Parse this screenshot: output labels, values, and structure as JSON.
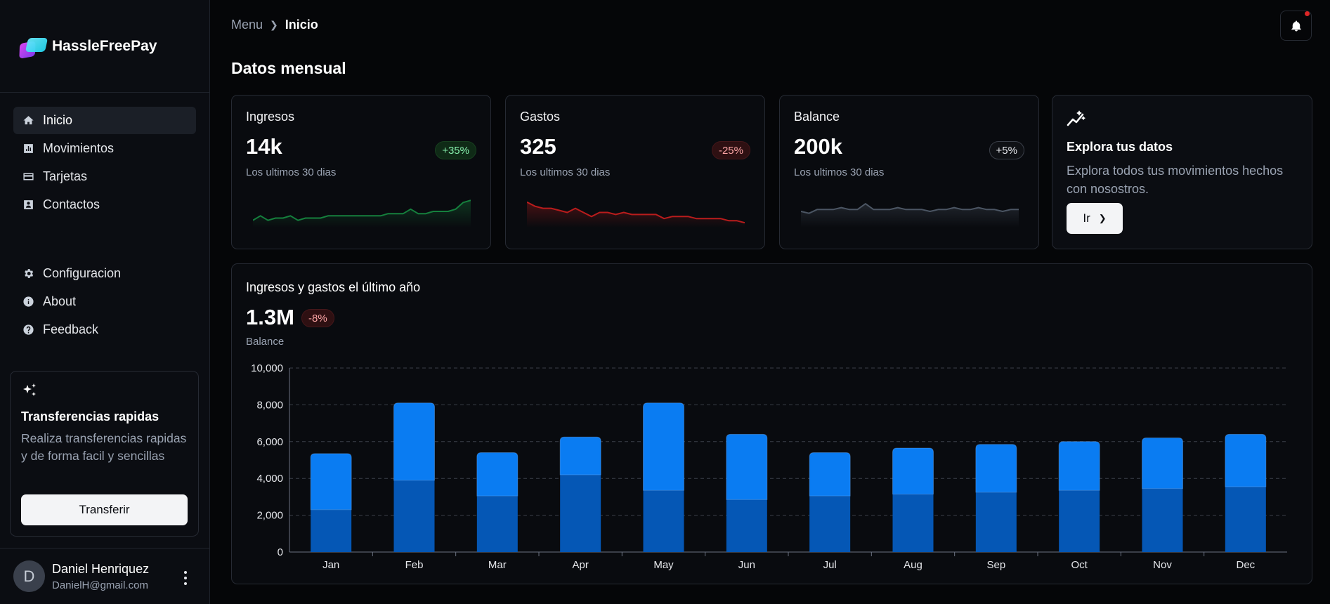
{
  "brand": {
    "name": "HassleFreePay"
  },
  "nav": {
    "main": [
      {
        "label": "Inicio",
        "icon": "home-icon",
        "active": true
      },
      {
        "label": "Movimientos",
        "icon": "bar-chart-icon"
      },
      {
        "label": "Tarjetas",
        "icon": "credit-card-icon"
      },
      {
        "label": "Contactos",
        "icon": "contact-card-icon"
      }
    ],
    "secondary": [
      {
        "label": "Configuracion",
        "icon": "gear-icon"
      },
      {
        "label": "About",
        "icon": "info-icon"
      },
      {
        "label": "Feedback",
        "icon": "help-icon"
      }
    ]
  },
  "quick_transfer": {
    "title": "Transferencias rapidas",
    "description": "Realiza transferencias rapidas y de forma facil y sencillas",
    "button": "Transferir"
  },
  "user": {
    "initial": "D",
    "name": "Daniel Henriquez",
    "email": "DanielH@gmail.com"
  },
  "breadcrumb": {
    "parent": "Menu",
    "current": "Inicio"
  },
  "page_title": "Datos mensual",
  "cards": [
    {
      "label": "Ingresos",
      "value": "14k",
      "badge": "+35%",
      "subtitle": "Los ultimos 30 dias",
      "color": "#15803d"
    },
    {
      "label": "Gastos",
      "value": "325",
      "badge": "-25%",
      "subtitle": "Los ultimos 30 dias",
      "color": "#b91c1c"
    },
    {
      "label": "Balance",
      "value": "200k",
      "badge": "+5%",
      "subtitle": "Los ultimos 30 dias",
      "color": "#4b5563"
    }
  ],
  "explore": {
    "title": "Explora tus datos",
    "description": "Explora todos tus movimientos hechos con nosostros.",
    "button": "Ir"
  },
  "yearly": {
    "title": "Ingresos y gastos el último año",
    "value": "1.3M",
    "badge": "-8%",
    "subtitle": "Balance"
  },
  "chart_data": {
    "type": "bar",
    "stacked": true,
    "categories": [
      "Jan",
      "Feb",
      "Mar",
      "Apr",
      "May",
      "Jun",
      "Jul",
      "Aug",
      "Sep",
      "Oct",
      "Nov",
      "Dec"
    ],
    "series": [
      {
        "values": [
          2300,
          3900,
          3050,
          4200,
          3350,
          2850,
          3050,
          3150,
          3250,
          3350,
          3450,
          3550
        ],
        "color": "#0557b5"
      },
      {
        "values": [
          3050,
          4200,
          2350,
          2050,
          4750,
          3550,
          2350,
          2500,
          2600,
          2650,
          2750,
          2850
        ],
        "color": "#0a7cf2"
      }
    ],
    "ylim": [
      0,
      10000
    ],
    "yticks": [
      "0",
      "2,000",
      "4,000",
      "6,000",
      "8,000",
      "10,000"
    ],
    "grid": true
  },
  "sparklines": {
    "ingresos": [
      12,
      14,
      12,
      13,
      13,
      14,
      12,
      13,
      13,
      13,
      14,
      14,
      14,
      14,
      14,
      14,
      14,
      14,
      15,
      15,
      15,
      17,
      15,
      15,
      16,
      16,
      16,
      17,
      20,
      21
    ],
    "gastos": [
      20,
      18,
      17,
      17,
      16,
      15,
      17,
      15,
      13,
      15,
      15,
      14,
      15,
      14,
      14,
      14,
      14,
      12,
      13,
      13,
      13,
      12,
      12,
      12,
      12,
      11,
      11,
      10
    ],
    "balance": [
      15,
      14,
      16,
      16,
      16,
      17,
      16,
      16,
      19,
      16,
      16,
      16,
      17,
      16,
      16,
      16,
      15,
      16,
      16,
      17,
      16,
      16,
      17,
      16,
      16,
      15,
      16,
      16
    ]
  }
}
